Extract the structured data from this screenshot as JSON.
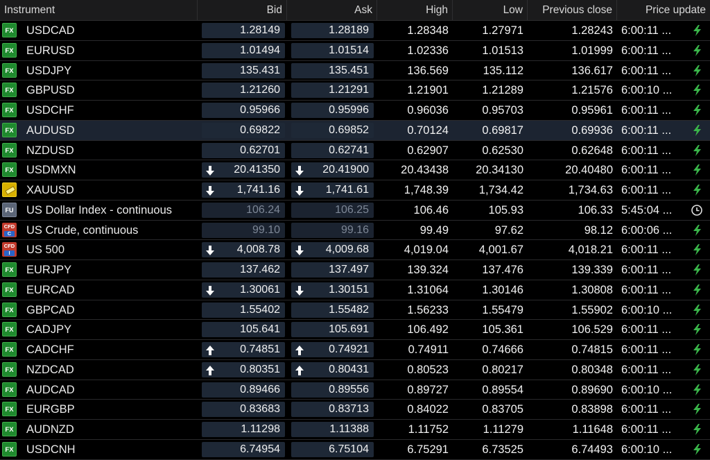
{
  "columns": {
    "instrument": "Instrument",
    "bid": "Bid",
    "ask": "Ask",
    "high": "High",
    "low": "Low",
    "prev_close": "Previous close",
    "price_update": "Price update"
  },
  "rows": [
    {
      "badge": "FX",
      "badge_type": "fx",
      "name": "USDCAD",
      "bid": "1.28149",
      "ask": "1.28189",
      "high": "1.28348",
      "low": "1.27971",
      "prev": "1.28243",
      "time": "6:00:11 ...",
      "status_icon": "lightning-icon",
      "arrow": ""
    },
    {
      "badge": "FX",
      "badge_type": "fx",
      "name": "EURUSD",
      "bid": "1.01494",
      "ask": "1.01514",
      "high": "1.02336",
      "low": "1.01513",
      "prev": "1.01999",
      "time": "6:00:11 ...",
      "status_icon": "lightning-icon",
      "arrow": ""
    },
    {
      "badge": "FX",
      "badge_type": "fx",
      "name": "USDJPY",
      "bid": "135.431",
      "ask": "135.451",
      "high": "136.569",
      "low": "135.112",
      "prev": "136.617",
      "time": "6:00:11 ...",
      "status_icon": "lightning-icon",
      "arrow": ""
    },
    {
      "badge": "FX",
      "badge_type": "fx",
      "name": "GBPUSD",
      "bid": "1.21260",
      "ask": "1.21291",
      "high": "1.21901",
      "low": "1.21289",
      "prev": "1.21576",
      "time": "6:00:10 ...",
      "status_icon": "lightning-icon",
      "arrow": ""
    },
    {
      "badge": "FX",
      "badge_type": "fx",
      "name": "USDCHF",
      "bid": "0.95966",
      "ask": "0.95996",
      "high": "0.96036",
      "low": "0.95703",
      "prev": "0.95961",
      "time": "6:00:11 ...",
      "status_icon": "lightning-icon",
      "arrow": ""
    },
    {
      "badge": "FX",
      "badge_type": "fx",
      "name": "AUDUSD",
      "bid": "0.69822",
      "ask": "0.69852",
      "high": "0.70124",
      "low": "0.69817",
      "prev": "0.69936",
      "time": "6:00:11 ...",
      "status_icon": "lightning-icon",
      "arrow": "",
      "selected": true
    },
    {
      "badge": "FX",
      "badge_type": "fx",
      "name": "NZDUSD",
      "bid": "0.62701",
      "ask": "0.62741",
      "high": "0.62907",
      "low": "0.62530",
      "prev": "0.62648",
      "time": "6:00:11 ...",
      "status_icon": "lightning-icon",
      "arrow": ""
    },
    {
      "badge": "FX",
      "badge_type": "fx",
      "name": "USDMXN",
      "bid": "20.41350",
      "ask": "20.41900",
      "high": "20.43438",
      "low": "20.34130",
      "prev": "20.40480",
      "time": "6:00:11 ...",
      "status_icon": "lightning-icon",
      "arrow": "down"
    },
    {
      "badge": "",
      "badge_type": "gold",
      "name": "XAUUSD",
      "bid": "1,741.16",
      "ask": "1,741.61",
      "high": "1,748.39",
      "low": "1,734.42",
      "prev": "1,734.63",
      "time": "6:00:11 ...",
      "status_icon": "lightning-icon",
      "arrow": "down"
    },
    {
      "badge": "FU",
      "badge_type": "fu",
      "name": "US Dollar Index - continuous",
      "bid": "106.24",
      "ask": "106.25",
      "high": "106.46",
      "low": "105.93",
      "prev": "106.33",
      "time": "5:45:04 ...",
      "status_icon": "clock-icon",
      "arrow": "",
      "dim": true
    },
    {
      "badge": "CFD",
      "badge_sub": "C",
      "badge_type": "cfd",
      "name": "US Crude, continuous",
      "bid": "99.10",
      "ask": "99.16",
      "high": "99.49",
      "low": "97.62",
      "prev": "98.12",
      "time": "6:00:06 ...",
      "status_icon": "lightning-icon",
      "arrow": "",
      "dim": true
    },
    {
      "badge": "CFD",
      "badge_sub": "I",
      "badge_type": "cfd",
      "name": "US 500",
      "bid": "4,008.78",
      "ask": "4,009.68",
      "high": "4,019.04",
      "low": "4,001.67",
      "prev": "4,018.21",
      "time": "6:00:11 ...",
      "status_icon": "lightning-icon",
      "arrow": "down"
    },
    {
      "badge": "FX",
      "badge_type": "fx",
      "name": "EURJPY",
      "bid": "137.462",
      "ask": "137.497",
      "high": "139.324",
      "low": "137.476",
      "prev": "139.339",
      "time": "6:00:11 ...",
      "status_icon": "lightning-icon",
      "arrow": ""
    },
    {
      "badge": "FX",
      "badge_type": "fx",
      "name": "EURCAD",
      "bid": "1.30061",
      "ask": "1.30151",
      "high": "1.31064",
      "low": "1.30146",
      "prev": "1.30808",
      "time": "6:00:11 ...",
      "status_icon": "lightning-icon",
      "arrow": "down"
    },
    {
      "badge": "FX",
      "badge_type": "fx",
      "name": "GBPCAD",
      "bid": "1.55402",
      "ask": "1.55482",
      "high": "1.56233",
      "low": "1.55479",
      "prev": "1.55902",
      "time": "6:00:10 ...",
      "status_icon": "lightning-icon",
      "arrow": ""
    },
    {
      "badge": "FX",
      "badge_type": "fx",
      "name": "CADJPY",
      "bid": "105.641",
      "ask": "105.691",
      "high": "106.492",
      "low": "105.361",
      "prev": "106.529",
      "time": "6:00:11 ...",
      "status_icon": "lightning-icon",
      "arrow": ""
    },
    {
      "badge": "FX",
      "badge_type": "fx",
      "name": "CADCHF",
      "bid": "0.74851",
      "ask": "0.74921",
      "high": "0.74911",
      "low": "0.74666",
      "prev": "0.74815",
      "time": "6:00:11 ...",
      "status_icon": "lightning-icon",
      "arrow": "up"
    },
    {
      "badge": "FX",
      "badge_type": "fx",
      "name": "NZDCAD",
      "bid": "0.80351",
      "ask": "0.80431",
      "high": "0.80523",
      "low": "0.80217",
      "prev": "0.80348",
      "time": "6:00:11 ...",
      "status_icon": "lightning-icon",
      "arrow": "up"
    },
    {
      "badge": "FX",
      "badge_type": "fx",
      "name": "AUDCAD",
      "bid": "0.89466",
      "ask": "0.89556",
      "high": "0.89727",
      "low": "0.89554",
      "prev": "0.89690",
      "time": "6:00:10 ...",
      "status_icon": "lightning-icon",
      "arrow": ""
    },
    {
      "badge": "FX",
      "badge_type": "fx",
      "name": "EURGBP",
      "bid": "0.83683",
      "ask": "0.83713",
      "high": "0.84022",
      "low": "0.83705",
      "prev": "0.83898",
      "time": "6:00:11 ...",
      "status_icon": "lightning-icon",
      "arrow": ""
    },
    {
      "badge": "FX",
      "badge_type": "fx",
      "name": "AUDNZD",
      "bid": "1.11298",
      "ask": "1.11388",
      "high": "1.11752",
      "low": "1.11279",
      "prev": "1.11648",
      "time": "6:00:11 ...",
      "status_icon": "lightning-icon",
      "arrow": ""
    },
    {
      "badge": "FX",
      "badge_type": "fx",
      "name": "USDCNH",
      "bid": "6.74954",
      "ask": "6.75104",
      "high": "6.75291",
      "low": "6.73525",
      "prev": "6.74493",
      "time": "6:00:10 ...",
      "status_icon": "lightning-icon",
      "arrow": ""
    }
  ],
  "colors": {
    "background": "#000000",
    "header_bg": "#1b1b1c",
    "price_box": "#1e2836",
    "selected_row": "#1c2431",
    "fx_badge": "#1f8a2e",
    "lightning": "#3ab54a",
    "dim_text": "#7d8796"
  }
}
